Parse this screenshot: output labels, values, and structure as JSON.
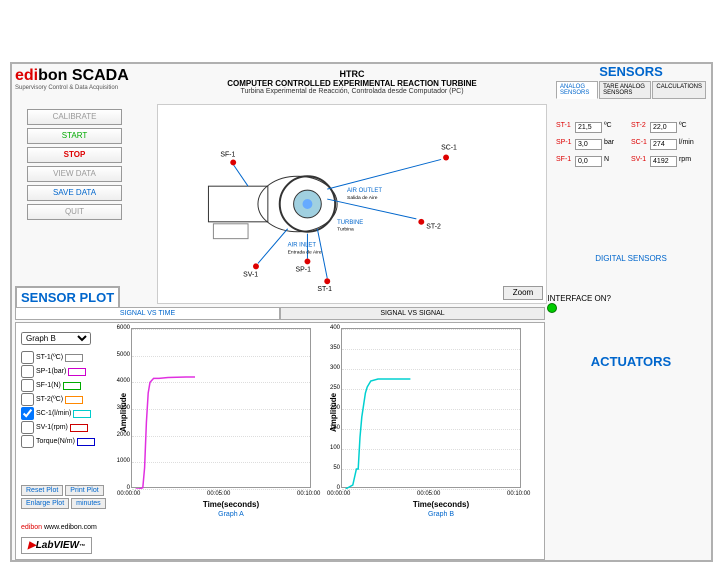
{
  "app": {
    "brand_prefix": "edi",
    "brand_suffix": "bon",
    "scada": " SCADA",
    "subtitle": "Supervisory Control & Data Acquisition"
  },
  "header": {
    "line1": "HTRC",
    "line2": "COMPUTER CONTROLLED EXPERIMENTAL REACTION TURBINE",
    "line3": "Turbina Experimental de Reacción, Controlada desde Computador (PC)"
  },
  "buttons": {
    "calibrate": "CALIBRATE",
    "start": "START",
    "stop": "STOP",
    "view_data": "VIEW DATA",
    "save_data": "SAVE DATA",
    "quit": "QUIT"
  },
  "diagram": {
    "zoom": "Zoom",
    "points": {
      "sf1": "SF-1",
      "sc1": "SC-1",
      "st2": "ST-2",
      "sv1": "SV-1",
      "st1": "ST-1",
      "sp1": "SP-1",
      "air_outlet": "AIR OUTLET",
      "air_outlet_sub": "Salida de Aire",
      "turbine": "TURBINE",
      "turbine_sub": "Turbina",
      "air_inlet": "AIR INLET",
      "air_inlet_sub": "Entrada de Aire"
    }
  },
  "sensors": {
    "title": "SENSORS",
    "tabs": [
      "ANALOG SENSORS",
      "TARE ANALOG SENSORS",
      "CALCULATIONS"
    ],
    "active_tab": 0,
    "vals": [
      {
        "lab": "ST-1",
        "val": "21,5",
        "unit": "ºC"
      },
      {
        "lab": "ST-2",
        "val": "22,0",
        "unit": "ºC"
      },
      {
        "lab": "SP-1",
        "val": "3,0",
        "unit": "bar"
      },
      {
        "lab": "SC-1",
        "val": "274",
        "unit": "l/min"
      },
      {
        "lab": "SF-1",
        "val": "0,0",
        "unit": "N"
      },
      {
        "lab": "SV-1",
        "val": "4192",
        "unit": "rpm"
      }
    ],
    "digital": "DIGITAL SENSORS",
    "interface": "INTERFACE ON?",
    "led_color": "#00cc00"
  },
  "plot": {
    "title": "SENSOR PLOT",
    "tabs": [
      "SIGNAL VS TIME",
      "SIGNAL VS SIGNAL"
    ],
    "active_tab": 0,
    "dropdown": "Graph B",
    "checkboxes": [
      {
        "label": "ST-1(ºC)",
        "checked": false,
        "color": "#888"
      },
      {
        "label": "SP-1(bar)",
        "checked": false,
        "color": "#c0c"
      },
      {
        "label": "SF-1(N)",
        "checked": false,
        "color": "#0a0"
      },
      {
        "label": "ST-2(ºC)",
        "checked": false,
        "color": "#f80"
      },
      {
        "label": "SC-1(l/min)",
        "checked": true,
        "color": "#0cc"
      },
      {
        "label": "SV-1(rpm)",
        "checked": false,
        "color": "#c00"
      },
      {
        "label": "Torque(N/m)",
        "checked": false,
        "color": "#00c"
      }
    ],
    "buttons": {
      "reset": "Reset Plot",
      "print": "Print Plot",
      "enlarge": "Enlarge Plot",
      "minutes": "minutes"
    },
    "website_prefix": "edibon",
    "website": " www.edibon.com",
    "labview": "LabVIEW"
  },
  "actuators": {
    "title": "ACTUATORS"
  },
  "charts": {
    "a": {
      "title": "Graph A",
      "xlabel": "Time(seconds)",
      "ylabel": "Amplitude",
      "yticks": [
        0,
        1000,
        2000,
        3000,
        4000,
        5000,
        6000
      ],
      "ylim": [
        0,
        6000
      ],
      "xticks": [
        "00:00:00",
        "00:05:00",
        "00:10:00"
      ],
      "line_color": "#e030e0",
      "data": [
        [
          0.02,
          0
        ],
        [
          0.04,
          0
        ],
        [
          0.06,
          50
        ],
        [
          0.07,
          800
        ],
        [
          0.08,
          2500
        ],
        [
          0.09,
          3600
        ],
        [
          0.1,
          4000
        ],
        [
          0.12,
          4150
        ],
        [
          0.15,
          4150
        ],
        [
          0.2,
          4180
        ],
        [
          0.3,
          4200
        ],
        [
          0.35,
          4200
        ]
      ]
    },
    "b": {
      "title": "Graph B",
      "xlabel": "Time(seconds)",
      "ylabel": "Amplitude",
      "yticks": [
        0,
        50,
        100,
        150,
        200,
        250,
        300,
        350,
        400
      ],
      "ylim": [
        0,
        400
      ],
      "xticks": [
        "00:00:00",
        "00:05:00",
        "00:10:00"
      ],
      "line_color": "#00d0d0",
      "data": [
        [
          0.02,
          0
        ],
        [
          0.04,
          5
        ],
        [
          0.06,
          10
        ],
        [
          0.08,
          50
        ],
        [
          0.09,
          50
        ],
        [
          0.1,
          130
        ],
        [
          0.11,
          180
        ],
        [
          0.12,
          210
        ],
        [
          0.13,
          240
        ],
        [
          0.14,
          255
        ],
        [
          0.16,
          270
        ],
        [
          0.2,
          275
        ],
        [
          0.3,
          275
        ],
        [
          0.38,
          275
        ]
      ]
    }
  }
}
